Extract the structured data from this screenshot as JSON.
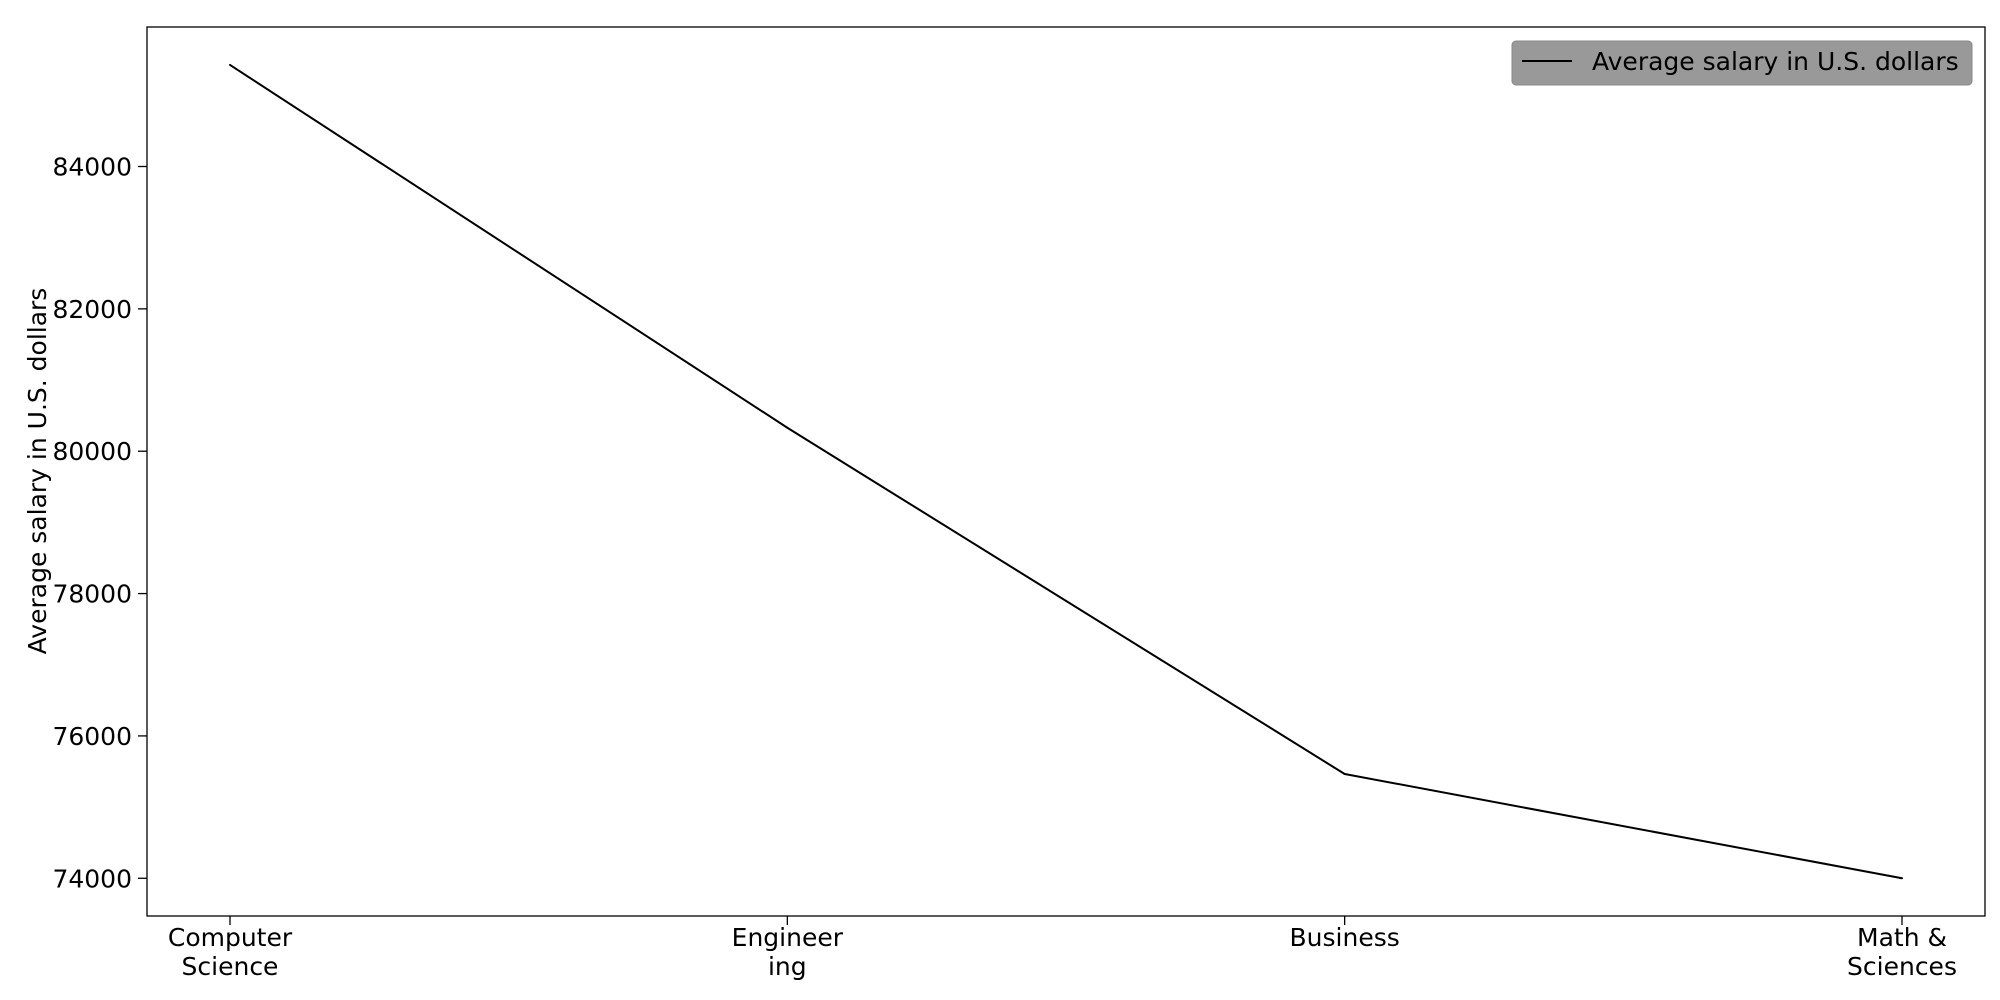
{
  "chart_data": {
    "type": "line",
    "categories": [
      "Computer\nScience",
      "Engineer\ning",
      "Business",
      "Math &\nSciences"
    ],
    "series": [
      {
        "name": "Average salary in U.S. dollars",
        "values": [
          85427,
          80330,
          75465,
          74000
        ],
        "color": "#000000"
      }
    ],
    "xlabel": "",
    "ylabel": "Average salary in U.S. dollars",
    "yticks": [
      74000,
      76000,
      78000,
      80000,
      82000,
      84000
    ],
    "ylim": [
      73470,
      85960
    ],
    "grid": false,
    "legend": {
      "position": "top-right",
      "background": "#999999"
    }
  }
}
